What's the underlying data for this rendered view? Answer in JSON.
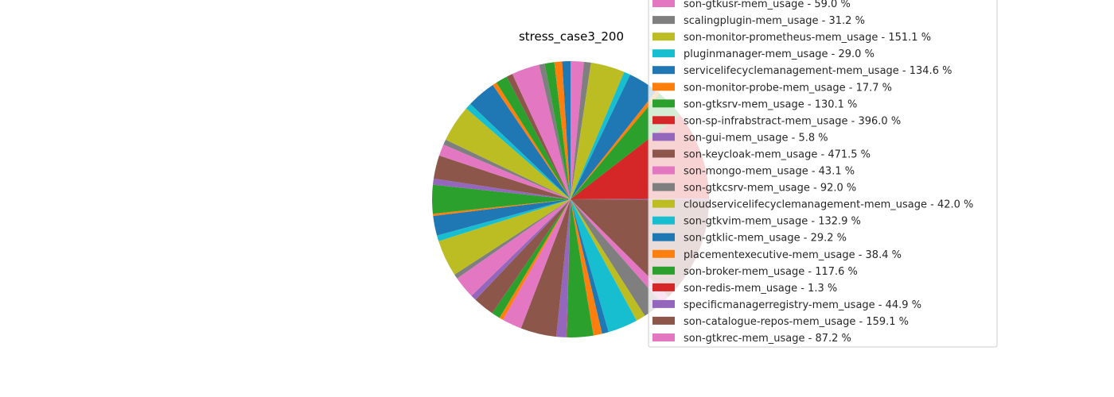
{
  "chart_data": {
    "type": "pie",
    "title": "stress_case3_200",
    "legend_position": "right",
    "unit": "%",
    "slices": [
      {
        "label": "son-gtkusr-mem_usage",
        "value": 59.0,
        "color": "#e377c2"
      },
      {
        "label": "scalingplugin-mem_usage",
        "value": 31.2,
        "color": "#7f7f7f"
      },
      {
        "label": "son-monitor-prometheus-mem_usage",
        "value": 151.1,
        "color": "#bcbd22"
      },
      {
        "label": "pluginmanager-mem_usage",
        "value": 29.0,
        "color": "#17becf"
      },
      {
        "label": "servicelifecyclemanagement-mem_usage",
        "value": 134.6,
        "color": "#1f77b4"
      },
      {
        "label": "son-monitor-probe-mem_usage",
        "value": 17.7,
        "color": "#ff7f0e"
      },
      {
        "label": "son-gtksrv-mem_usage",
        "value": 130.1,
        "color": "#2ca02c"
      },
      {
        "label": "son-sp-infrabstract-mem_usage",
        "value": 396.0,
        "color": "#d62728"
      },
      {
        "label": "son-gui-mem_usage",
        "value": 5.8,
        "color": "#9467bd"
      },
      {
        "label": "son-keycloak-mem_usage",
        "value": 471.5,
        "color": "#8c564b"
      },
      {
        "label": "son-mongo-mem_usage",
        "value": 43.1,
        "color": "#e377c2"
      },
      {
        "label": "son-gtkcsrv-mem_usage",
        "value": 92.0,
        "color": "#7f7f7f"
      },
      {
        "label": "cloudservicelifecyclemanagement-mem_usage",
        "value": 42.0,
        "color": "#bcbd22"
      },
      {
        "label": "son-gtkvim-mem_usage",
        "value": 132.9,
        "color": "#17becf"
      },
      {
        "label": "son-gtklic-mem_usage",
        "value": 29.2,
        "color": "#1f77b4"
      },
      {
        "label": "placementexecutive-mem_usage",
        "value": 38.4,
        "color": "#ff7f0e"
      },
      {
        "label": "son-broker-mem_usage",
        "value": 117.6,
        "color": "#2ca02c"
      },
      {
        "label": "son-redis-mem_usage",
        "value": 1.3,
        "color": "#d62728"
      },
      {
        "label": "specificmanagerregistry-mem_usage",
        "value": 44.9,
        "color": "#9467bd"
      },
      {
        "label": "son-catalogue-repos-mem_usage",
        "value": 159.1,
        "color": "#8c564b"
      },
      {
        "label": "son-gtkrec-mem_usage",
        "value": 87.2,
        "color": "#e377c2"
      }
    ],
    "hidden_slices": [
      {
        "value": 17.7,
        "color": "#ff7f0e"
      },
      {
        "value": 38.4,
        "color": "#2ca02c"
      },
      {
        "value": 93.6,
        "color": "#8c564b"
      },
      {
        "value": 25.0,
        "color": "#9467bd"
      },
      {
        "value": 98.5,
        "color": "#e377c2"
      },
      {
        "value": 20.5,
        "color": "#7f7f7f"
      },
      {
        "value": 162.8,
        "color": "#bcbd22"
      },
      {
        "value": 26.0,
        "color": "#17becf"
      },
      {
        "value": 87.5,
        "color": "#1f77b4"
      },
      {
        "value": 9.5,
        "color": "#ff7f0e"
      },
      {
        "value": 128.0,
        "color": "#2ca02c"
      },
      {
        "value": 27.0,
        "color": "#9467bd"
      },
      {
        "value": 104.0,
        "color": "#8c564b"
      },
      {
        "value": 52.0,
        "color": "#e377c2"
      },
      {
        "value": 23.5,
        "color": "#7f7f7f"
      },
      {
        "value": 164.0,
        "color": "#bcbd22"
      },
      {
        "value": 27.0,
        "color": "#17becf"
      },
      {
        "value": 129.0,
        "color": "#1f77b4"
      },
      {
        "value": 19.0,
        "color": "#ff7f0e"
      },
      {
        "value": 52.0,
        "color": "#2ca02c"
      },
      {
        "value": 27.5,
        "color": "#8c564b"
      },
      {
        "value": 124.0,
        "color": "#e377c2"
      },
      {
        "value": 25.0,
        "color": "#7f7f7f"
      },
      {
        "value": 42.5,
        "color": "#2ca02c"
      },
      {
        "value": 34.5,
        "color": "#ff7f0e"
      },
      {
        "value": 37.0,
        "color": "#1f77b4"
      }
    ]
  }
}
